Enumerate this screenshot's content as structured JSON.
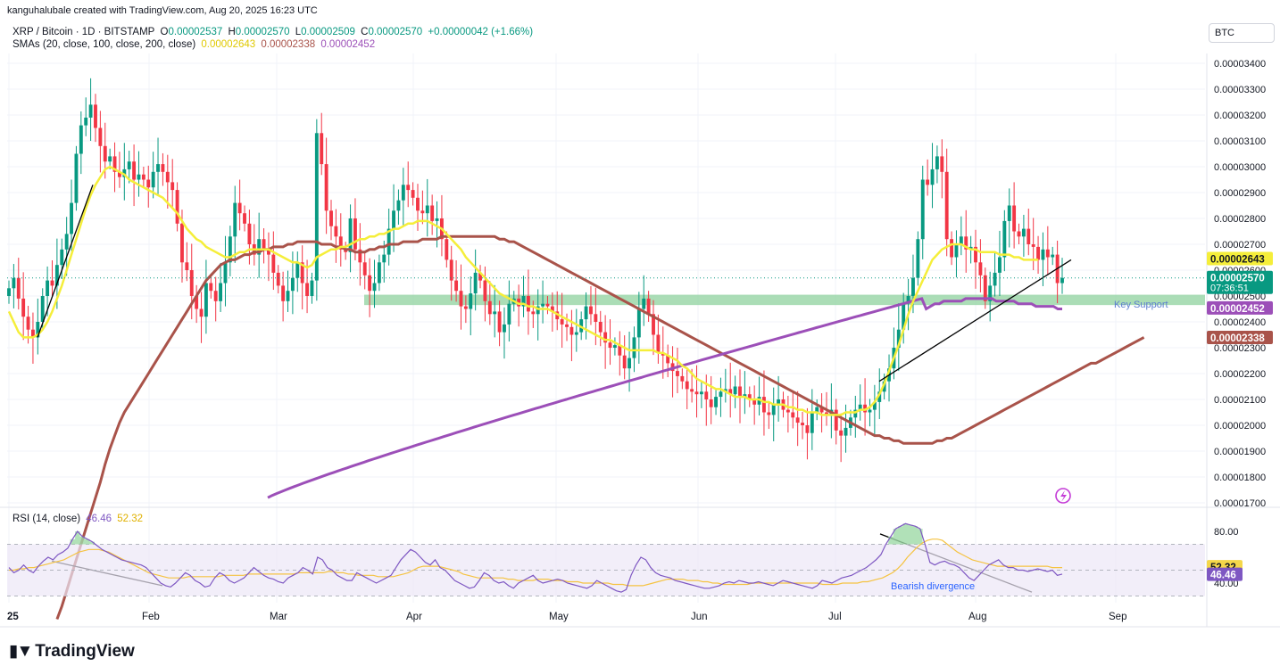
{
  "header": {
    "author_line": "kanguhalubale created with TradingView.com, Aug 20, 2025 16:23 UTC",
    "symbol": "XRP / Bitcoin · 1D · BITSTAMP",
    "ohlc": {
      "o_label": "O",
      "o": "0.00002537",
      "h_label": "H",
      "h": "0.00002570",
      "l_label": "L",
      "l": "0.00002509",
      "c_label": "C",
      "c": "0.00002570",
      "change": "+0.00000042 (+1.66%)"
    },
    "sma_label": "SMAs (20, close, 100, close, 200, close)",
    "sma_values": [
      "0.00002643",
      "0.00002338",
      "0.00002452"
    ],
    "currency": "BTC"
  },
  "colors": {
    "up": "#089981",
    "down": "#f23645",
    "sma20": "#f5ee3a",
    "sma100": "#a9534a",
    "sma200": "#9c4fb8",
    "support": "#8fd19e",
    "rsi": "#7e57c2",
    "rsi_ma": "#f5c342",
    "rsi_band": "#ede7f6"
  },
  "chart_data": [
    {
      "type": "candlestick",
      "title": "XRP / Bitcoin · 1D · BITSTAMP",
      "y_ticks": [
        "0.00003400",
        "0.00003300",
        "0.00003200",
        "0.00003100",
        "0.00003000",
        "0.00002900",
        "0.00002800",
        "0.00002700",
        "0.00002600",
        "0.00002500",
        "0.00002400",
        "0.00002300",
        "0.00002200",
        "0.00002100",
        "0.00002000",
        "0.00001900",
        "0.00001800",
        "0.00001700"
      ],
      "ylim": [
        1.7e-05,
        3.44e-05
      ],
      "x_ticks": [
        "25",
        "Feb",
        "Mar",
        "Apr",
        "May",
        "Jun",
        "Jul",
        "Aug",
        "Sep"
      ],
      "price_tags": [
        {
          "value": "0.00002643",
          "series": "SMA 20"
        },
        {
          "value": "0.00002570",
          "extra": "07:36:51",
          "series": "Last price"
        },
        {
          "value": "0.00002452",
          "series": "SMA 200"
        },
        {
          "value": "0.00002338",
          "series": "SMA 100"
        }
      ],
      "annotations": [
        "Key Support"
      ],
      "support_zone": [
        2.465e-05,
        2.505e-05
      ],
      "closes": [
        2.53,
        2.57,
        2.49,
        2.42,
        2.37,
        2.34,
        2.4,
        2.5,
        2.56,
        2.54,
        2.62,
        2.68,
        2.74,
        2.86,
        3.05,
        3.16,
        3.19,
        3.24,
        3.15,
        3.08,
        3.02,
        3.04,
        2.98,
        2.96,
        2.99,
        3.02,
        2.95,
        2.97,
        2.95,
        2.92,
        2.98,
        3.01,
        2.98,
        2.94,
        2.91,
        2.78,
        2.63,
        2.6,
        2.5,
        2.45,
        2.42,
        2.55,
        2.52,
        2.48,
        2.55,
        2.63,
        2.73,
        2.86,
        2.82,
        2.78,
        2.7,
        2.66,
        2.72,
        2.68,
        2.66,
        2.59,
        2.54,
        2.48,
        2.52,
        2.57,
        2.63,
        2.55,
        2.5,
        2.56,
        3.13,
        3.01,
        2.83,
        2.77,
        2.73,
        2.68,
        2.67,
        2.8,
        2.68,
        2.63,
        2.58,
        2.52,
        2.55,
        2.63,
        2.66,
        2.76,
        2.83,
        2.87,
        2.93,
        2.91,
        2.88,
        2.83,
        2.82,
        2.85,
        2.79,
        2.8,
        2.72,
        2.64,
        2.56,
        2.52,
        2.46,
        2.45,
        2.51,
        2.59,
        2.56,
        2.48,
        2.43,
        2.44,
        2.36,
        2.39,
        2.47,
        2.49,
        2.46,
        2.5,
        2.44,
        2.43,
        2.46,
        2.47,
        2.46,
        2.44,
        2.41,
        2.39,
        2.38,
        2.35,
        2.36,
        2.41,
        2.46,
        2.43,
        2.4,
        2.36,
        2.32,
        2.3,
        2.31,
        2.27,
        2.22,
        2.26,
        2.34,
        2.45,
        2.49,
        2.43,
        2.35,
        2.28,
        2.27,
        2.24,
        2.21,
        2.19,
        2.17,
        2.14,
        2.13,
        2.12,
        2.13,
        2.1,
        2.07,
        2.11,
        2.13,
        2.14,
        2.12,
        2.15,
        2.11,
        2.12,
        2.1,
        2.08,
        2.11,
        2.05,
        2.04,
        2.08,
        2.1,
        2.06,
        2.05,
        2.03,
        2.01,
        2.0,
        1.97,
        2.05,
        2.07,
        2.05,
        2.04,
        2.06,
        1.98,
        1.96,
        1.99,
        2.03,
        2.06,
        2.08,
        2.05,
        2.06,
        2.09,
        2.13,
        2.17,
        2.22,
        2.3,
        2.37,
        2.47,
        2.5,
        2.57,
        2.72,
        2.95,
        2.93,
        2.99,
        3.04,
        2.98,
        2.72,
        2.65,
        2.7,
        2.73,
        2.68,
        2.69,
        2.63,
        2.58,
        2.48,
        2.54,
        2.59,
        2.65,
        2.79,
        2.85,
        2.75,
        2.73,
        2.76,
        2.7,
        2.69,
        2.64,
        2.68,
        2.65,
        2.66,
        2.55,
        2.57
      ],
      "sma20": [
        2.44,
        2.4,
        2.36,
        2.34,
        2.34,
        2.34,
        2.35,
        2.37,
        2.4,
        2.44,
        2.49,
        2.54,
        2.6,
        2.66,
        2.72,
        2.78,
        2.84,
        2.89,
        2.93,
        2.96,
        2.99,
        3.0,
        2.99,
        2.98,
        2.97,
        2.95,
        2.94,
        2.93,
        2.92,
        2.91,
        2.9,
        2.89,
        2.88,
        2.86,
        2.84,
        2.82,
        2.79,
        2.76,
        2.74,
        2.72,
        2.71,
        2.69,
        2.68,
        2.67,
        2.66,
        2.65,
        2.65,
        2.66,
        2.67,
        2.67,
        2.68,
        2.68,
        2.68,
        2.68,
        2.68,
        2.67,
        2.66,
        2.65,
        2.64,
        2.63,
        2.63,
        2.62,
        2.61,
        2.62,
        2.65,
        2.66,
        2.67,
        2.68,
        2.68,
        2.69,
        2.69,
        2.7,
        2.71,
        2.72,
        2.72,
        2.73,
        2.73,
        2.74,
        2.74,
        2.75,
        2.76,
        2.76,
        2.77,
        2.78,
        2.78,
        2.79,
        2.79,
        2.79,
        2.78,
        2.77,
        2.76,
        2.74,
        2.72,
        2.7,
        2.68,
        2.65,
        2.63,
        2.61,
        2.59,
        2.57,
        2.55,
        2.53,
        2.51,
        2.5,
        2.49,
        2.48,
        2.47,
        2.47,
        2.46,
        2.46,
        2.45,
        2.45,
        2.45,
        2.44,
        2.43,
        2.42,
        2.41,
        2.4,
        2.39,
        2.38,
        2.37,
        2.36,
        2.35,
        2.34,
        2.33,
        2.33,
        2.32,
        2.31,
        2.3,
        2.29,
        2.29,
        2.29,
        2.29,
        2.29,
        2.29,
        2.28,
        2.28,
        2.27,
        2.26,
        2.25,
        2.23,
        2.22,
        2.2,
        2.18,
        2.17,
        2.16,
        2.15,
        2.14,
        2.14,
        2.13,
        2.12,
        2.11,
        2.11,
        2.11,
        2.1,
        2.1,
        2.1,
        2.09,
        2.09,
        2.08,
        2.08,
        2.08,
        2.07,
        2.07,
        2.06,
        2.06,
        2.05,
        2.05,
        2.05,
        2.04,
        2.04,
        2.04,
        2.04,
        2.04,
        2.05,
        2.05,
        2.05,
        2.06,
        2.06,
        2.07,
        2.09,
        2.12,
        2.16,
        2.21,
        2.26,
        2.31,
        2.37,
        2.43,
        2.48,
        2.52,
        2.56,
        2.6,
        2.64,
        2.66,
        2.68,
        2.69,
        2.7,
        2.7,
        2.7,
        2.69,
        2.68,
        2.68,
        2.67,
        2.67,
        2.67,
        2.67,
        2.66,
        2.66,
        2.66,
        2.65,
        2.65,
        2.64,
        2.64,
        2.64,
        2.64
      ],
      "sma100": [
        1.25,
        1.3,
        1.36,
        1.42,
        1.48,
        1.54,
        1.6,
        1.66,
        1.72,
        1.78,
        1.85,
        1.91,
        1.96,
        2.01,
        2.05,
        2.08,
        2.11,
        2.14,
        2.17,
        2.2,
        2.23,
        2.26,
        2.29,
        2.32,
        2.35,
        2.38,
        2.41,
        2.44,
        2.47,
        2.5,
        2.53,
        2.56,
        2.58,
        2.6,
        2.62,
        2.63,
        2.64,
        2.64,
        2.65,
        2.66,
        2.66,
        2.67,
        2.67,
        2.68,
        2.68,
        2.69,
        2.69,
        2.69,
        2.7,
        2.7,
        2.71,
        2.71,
        2.71,
        2.71,
        2.71,
        2.7,
        2.7,
        2.7,
        2.69,
        2.69,
        2.68,
        2.68,
        2.67,
        2.67,
        2.67,
        2.68,
        2.68,
        2.69,
        2.69,
        2.7,
        2.7,
        2.7,
        2.71,
        2.71,
        2.71,
        2.71,
        2.72,
        2.72,
        2.72,
        2.72,
        2.73,
        2.73,
        2.73,
        2.73,
        2.73,
        2.73,
        2.73,
        2.73,
        2.73,
        2.73,
        2.73,
        2.73,
        2.72,
        2.72,
        2.71,
        2.71,
        2.7,
        2.69,
        2.68,
        2.67,
        2.66,
        2.65,
        2.64,
        2.63,
        2.62,
        2.61,
        2.6,
        2.59,
        2.58,
        2.57,
        2.56,
        2.55,
        2.54,
        2.53,
        2.52,
        2.51,
        2.5,
        2.49,
        2.48,
        2.47,
        2.46,
        2.45,
        2.44,
        2.43,
        2.42,
        2.41,
        2.4,
        2.39,
        2.38,
        2.37,
        2.36,
        2.35,
        2.34,
        2.33,
        2.32,
        2.31,
        2.3,
        2.29,
        2.28,
        2.27,
        2.26,
        2.25,
        2.24,
        2.23,
        2.22,
        2.21,
        2.2,
        2.19,
        2.18,
        2.17,
        2.16,
        2.15,
        2.14,
        2.13,
        2.12,
        2.11,
        2.1,
        2.09,
        2.08,
        2.07,
        2.06,
        2.05,
        2.04,
        2.03,
        2.02,
        2.01,
        2.0,
        1.99,
        1.98,
        1.97,
        1.96,
        1.96,
        1.95,
        1.95,
        1.94,
        1.94,
        1.93,
        1.93,
        1.93,
        1.93,
        1.93,
        1.93,
        1.93,
        1.94,
        1.94,
        1.95,
        1.95,
        1.96,
        1.97,
        1.98,
        1.99,
        2.0,
        2.01,
        2.02,
        2.03,
        2.04,
        2.05,
        2.06,
        2.07,
        2.08,
        2.09,
        2.1,
        2.11,
        2.12,
        2.13,
        2.14,
        2.15,
        2.16,
        2.17,
        2.18,
        2.19,
        2.2,
        2.21,
        2.22,
        2.23,
        2.24,
        2.24,
        2.25,
        2.26,
        2.27,
        2.28,
        2.29,
        2.3,
        2.31,
        2.32,
        2.33,
        2.34
      ],
      "sma200": [
        2.45,
        2.46,
        2.47,
        2.47,
        2.48,
        2.48,
        2.48,
        2.48,
        2.48,
        2.49,
        2.49,
        2.49,
        2.49,
        2.49,
        2.49,
        2.49,
        2.48,
        2.48,
        2.48,
        2.48,
        2.48,
        2.47,
        2.47,
        2.47,
        2.47,
        2.46,
        2.46,
        2.46,
        2.46,
        2.46,
        2.45,
        2.45
      ]
    },
    {
      "type": "line",
      "title": "RSI (14, close)",
      "legend": [
        "46.46",
        "52.32"
      ],
      "y_ticks": [
        "80.00",
        "40.00"
      ],
      "tags": [
        "52.32",
        "46.46"
      ],
      "ylim": [
        30,
        90
      ],
      "band": [
        30,
        70
      ],
      "annotations": [
        "Bearish divergence"
      ],
      "rsi": [
        52,
        48,
        50,
        54,
        50,
        48,
        53,
        57,
        60,
        58,
        62,
        64,
        67,
        74,
        80,
        76,
        74,
        72,
        69,
        66,
        64,
        62,
        60,
        58,
        57,
        56,
        55,
        54,
        52,
        48,
        44,
        40,
        38,
        37,
        40,
        44,
        48,
        46,
        42,
        40,
        37,
        38,
        44,
        48,
        46,
        42,
        40,
        42,
        44,
        48,
        52,
        49,
        46,
        44,
        43,
        41,
        40,
        44,
        46,
        48,
        52,
        50,
        47,
        60,
        58,
        52,
        50,
        46,
        44,
        42,
        42,
        48,
        46,
        44,
        42,
        40,
        42,
        44,
        46,
        52,
        58,
        62,
        66,
        64,
        60,
        56,
        54,
        58,
        52,
        50,
        46,
        42,
        40,
        38,
        36,
        37,
        42,
        48,
        46,
        42,
        40,
        41,
        38,
        36,
        40,
        42,
        44,
        46,
        42,
        40,
        41,
        42,
        43,
        42,
        40,
        39,
        38,
        37,
        36,
        38,
        42,
        40,
        38,
        36,
        34,
        33,
        35,
        46,
        54,
        60,
        58,
        52,
        48,
        46,
        45,
        44,
        42,
        41,
        40,
        39,
        38,
        37,
        36,
        36,
        37,
        38,
        40,
        41,
        40,
        42,
        41,
        40,
        40,
        41,
        40,
        39,
        38,
        40,
        42,
        41,
        40,
        39,
        38,
        37,
        36,
        38,
        42,
        41,
        40,
        42,
        44,
        45,
        46,
        48,
        50,
        52,
        55,
        58,
        62,
        70,
        76,
        82,
        84,
        86,
        85,
        84,
        82,
        70,
        56,
        54,
        56,
        57,
        55,
        54,
        52,
        48,
        44,
        42,
        46,
        50,
        54,
        56,
        58,
        54,
        52,
        52,
        50,
        50,
        49,
        50,
        51,
        50,
        49,
        50,
        46,
        47
      ],
      "rsi_ma": [
        50,
        50,
        51,
        51,
        52,
        52,
        53,
        54,
        55,
        56,
        57,
        58,
        60,
        62,
        64,
        65,
        66,
        66,
        66,
        65,
        64,
        62,
        60,
        58,
        56,
        54,
        52,
        50,
        48,
        47,
        46,
        45,
        44,
        44,
        44,
        44,
        45,
        45,
        45,
        45,
        45,
        45,
        45,
        46,
        46,
        46,
        46,
        46,
        47,
        47,
        47,
        47,
        47,
        47,
        47,
        47,
        47,
        47,
        48,
        48,
        48,
        48,
        48,
        48,
        49,
        49,
        48,
        48,
        47,
        47,
        46,
        46,
        46,
        46,
        45,
        45,
        45,
        45,
        46,
        47,
        48,
        50,
        52,
        53,
        53,
        53,
        53,
        52,
        51,
        50,
        49,
        47,
        46,
        45,
        44,
        44,
        44,
        44,
        44,
        44,
        43,
        43,
        42,
        42,
        42,
        42,
        43,
        43,
        43,
        42,
        42,
        42,
        41,
        41,
        41,
        40,
        40,
        40,
        40,
        40,
        40,
        39,
        39,
        39,
        38,
        38,
        38,
        38,
        39,
        40,
        41,
        42,
        43,
        43,
        43,
        43,
        42,
        42,
        42,
        41,
        41,
        40,
        40,
        39,
        39,
        39,
        39,
        39,
        39,
        40,
        40,
        40,
        40,
        40,
        40,
        40,
        40,
        40,
        40,
        40,
        40,
        40,
        40,
        39,
        39,
        39,
        39,
        40,
        40,
        40,
        40,
        41,
        41,
        42,
        43,
        44,
        46,
        48,
        51,
        55,
        60,
        64,
        68,
        71,
        73,
        74,
        74,
        73,
        70,
        67,
        64,
        62,
        60,
        58,
        57,
        56,
        55,
        54,
        53,
        53,
        53,
        53,
        53,
        53,
        53,
        53,
        53,
        53,
        53,
        52,
        52,
        52
      ]
    }
  ],
  "time_axis_labels": [
    "25",
    "Feb",
    "Mar",
    "Apr",
    "May",
    "Jun",
    "Jul",
    "Aug",
    "Sep"
  ],
  "logo_text": "TradingView"
}
